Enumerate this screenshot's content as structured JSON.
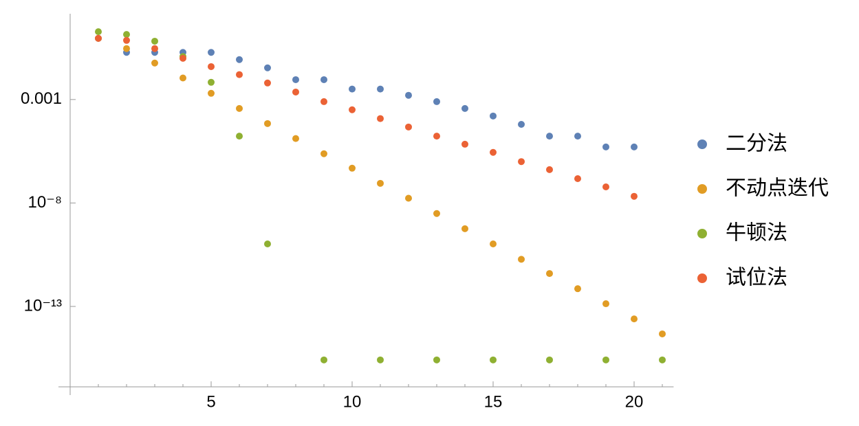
{
  "chart_data": {
    "type": "scatter",
    "log_y": true,
    "legend": "right",
    "x": [
      1,
      2,
      3,
      4,
      5,
      6,
      7,
      8,
      9,
      10,
      11,
      12,
      13,
      14,
      15,
      16,
      17,
      18,
      19,
      20,
      21
    ],
    "series": [
      {
        "name": "二分法",
        "color": "#5e81b5",
        "values": [
          0.9,
          0.19,
          0.19,
          0.19,
          0.19,
          0.085,
          0.034,
          0.0091,
          0.0091,
          0.0032,
          0.0032,
          0.0016,
          0.00079,
          0.00037,
          0.00016,
          6.3e-05,
          1.7e-05,
          1.7e-05,
          5.1e-06,
          5.1e-06,
          null
        ]
      },
      {
        "name": "不动点迭代",
        "color": "#e19c24",
        "values": [
          0.9,
          0.29,
          0.058,
          0.011,
          0.002,
          0.00037,
          6.9e-05,
          1.3e-05,
          2.4e-06,
          4.8e-07,
          8.9e-08,
          1.7e-08,
          3.1e-09,
          5.7e-10,
          1.05e-10,
          1.9e-11,
          3.9e-12,
          7.2e-13,
          1.35e-13,
          2.5e-14,
          4.7e-15
        ]
      },
      {
        "name": "牛顿法",
        "color": "#8fb032",
        "values": [
          1.9,
          1.4,
          0.66,
          0.12,
          0.0068,
          1.7e-05,
          1.05e-10,
          null,
          2.6e-16,
          null,
          2.6e-16,
          null,
          2.6e-16,
          null,
          2.6e-16,
          null,
          2.6e-16,
          null,
          2.6e-16,
          null,
          2.6e-16
        ]
      },
      {
        "name": "试位法",
        "color": "#eb6235",
        "values": [
          0.91,
          0.72,
          0.29,
          0.098,
          0.039,
          0.016,
          0.0063,
          0.0023,
          0.00079,
          0.00032,
          0.00012,
          4.7e-05,
          1.7e-05,
          6.9e-06,
          2.8e-06,
          1e-06,
          4.1e-07,
          1.5e-07,
          6e-08,
          2.1e-08,
          null
        ]
      }
    ],
    "xlim": [
      0,
      21.4
    ],
    "xticks": [
      5,
      10,
      15,
      20
    ],
    "ylim": [
      1.3e-17,
      14
    ],
    "yticks": [
      {
        "value": 0.001,
        "label": "0.001"
      },
      {
        "value": 1e-08,
        "label": "10⁻⁸"
      },
      {
        "value": 1e-13,
        "label": "10⁻¹³"
      }
    ]
  }
}
